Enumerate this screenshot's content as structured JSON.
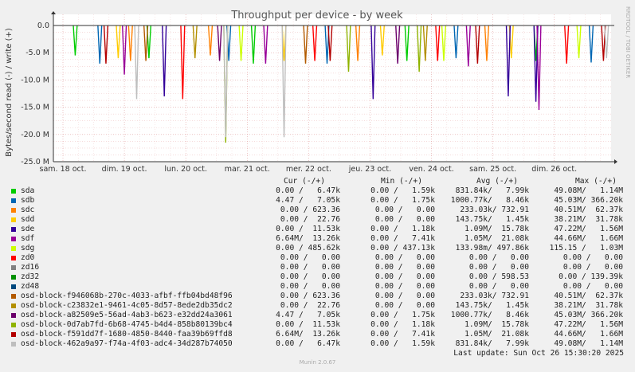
{
  "chart_data": {
    "type": "line",
    "title": "Throughput per device - by week",
    "ylabel": "Bytes/second read (-) / write (+)",
    "ylim": [
      -25.0,
      0.0
    ],
    "y_unit": "M",
    "y_ticks": [
      0.0,
      -5.0,
      -10.0,
      -15.0,
      -20.0,
      -25.0
    ],
    "y_tick_labels": [
      "0.0",
      "-5.0 M",
      "-10.0 M",
      "-15.0 M",
      "-20.0 M",
      "-25.0 M"
    ],
    "x_tick_labels": [
      "sam. 18 oct.",
      "dim. 19 oct.",
      "lun. 20 oct.",
      "mar. 21 oct.",
      "mer. 22 oct.",
      "jeu. 23 oct.",
      "ven. 24 oct.",
      "sam. 25 oct.",
      "dim. 26 oct."
    ],
    "grid": true,
    "series": [
      {
        "name": "sda",
        "color": "#00cc00",
        "spikes": [
          [
            0.2,
            -5.5
          ],
          [
            1.4,
            -6
          ],
          [
            3.1,
            -7
          ],
          [
            5.6,
            -6.5
          ],
          [
            7.7,
            -6.5
          ]
        ]
      },
      {
        "name": "sdb",
        "color": "#0066b3",
        "spikes": [
          [
            0.6,
            -7
          ],
          [
            2.7,
            -6.5
          ],
          [
            4.3,
            -7
          ],
          [
            6.4,
            -6
          ],
          [
            8.6,
            -6.8
          ]
        ]
      },
      {
        "name": "sdc",
        "color": "#ff8000",
        "spikes": [
          [
            1.1,
            -6.5
          ],
          [
            2.4,
            -5.5
          ],
          [
            4.8,
            -6.5
          ],
          [
            6.9,
            -6.5
          ]
        ]
      },
      {
        "name": "sdd",
        "color": "#ffcc00",
        "spikes": [
          [
            0.9,
            -6
          ],
          [
            3.6,
            -6.5
          ],
          [
            5.2,
            -5.5
          ],
          [
            7.3,
            -6
          ]
        ]
      },
      {
        "name": "sde",
        "color": "#330099",
        "spikes": [
          [
            1.65,
            -13
          ],
          [
            5.05,
            -13.5
          ],
          [
            7.25,
            -13
          ],
          [
            7.7,
            -14
          ]
        ]
      },
      {
        "name": "sdf",
        "color": "#990099",
        "spikes": [
          [
            1.0,
            -9
          ],
          [
            3.3,
            -7
          ],
          [
            6.6,
            -7.5
          ],
          [
            7.75,
            -15.5
          ]
        ]
      },
      {
        "name": "sdg",
        "color": "#ccff00",
        "spikes": [
          [
            2.9,
            -6.5
          ],
          [
            6.2,
            -6.5
          ],
          [
            8.4,
            -6
          ]
        ]
      },
      {
        "name": "zd0",
        "color": "#ff0000",
        "spikes": [
          [
            1.95,
            -13.5
          ],
          [
            4.1,
            -6.5
          ],
          [
            6.1,
            -6.5
          ],
          [
            8.2,
            -7
          ]
        ]
      },
      {
        "name": "zd16",
        "color": "#808080",
        "spikes": []
      },
      {
        "name": "zd32",
        "color": "#008f00",
        "spikes": []
      },
      {
        "name": "zd48",
        "color": "#00487d",
        "spikes": []
      },
      {
        "name": "osd-block-f946068b-270c-4033-afbf-ffb04bd48f96",
        "color": "#b35a00",
        "spikes": [
          [
            1.35,
            -6.5
          ],
          [
            3.95,
            -7
          ]
        ]
      },
      {
        "name": "osd-block-c23832e1-9461-4c05-8d57-8ede2db35dc2",
        "color": "#b38f00",
        "spikes": [
          [
            2.15,
            -6
          ],
          [
            5.9,
            -6.5
          ]
        ]
      },
      {
        "name": "osd-block-a82509e5-56ad-4ab3-b623-e32dd24a3061",
        "color": "#6b006b",
        "spikes": [
          [
            2.55,
            -6.5
          ],
          [
            5.45,
            -7
          ]
        ]
      },
      {
        "name": "osd-block-0d7ab7fd-6b68-4745-b4d4-858b80139bc4",
        "color": "#8fb300",
        "spikes": [
          [
            2.65,
            -21.5
          ],
          [
            4.65,
            -8.5
          ],
          [
            5.8,
            -8.5
          ]
        ]
      },
      {
        "name": "osd-block-f591dd7f-1680-4850-8440-faa39b69ffd8",
        "color": "#b30000",
        "spikes": [
          [
            0.7,
            -7
          ],
          [
            4.35,
            -6.5
          ],
          [
            6.75,
            -7
          ],
          [
            8.8,
            -6.5
          ]
        ]
      },
      {
        "name": "osd-block-462a9a97-f74a-4f03-adc4-34d287b74050",
        "color": "#bebebe",
        "spikes": [
          [
            1.2,
            -13.5
          ],
          [
            2.65,
            -20.5
          ],
          [
            3.6,
            -20.5
          ],
          [
            8.85,
            -6
          ]
        ]
      }
    ]
  },
  "legend": {
    "headers": {
      "cur": "Cur (-/+)",
      "min": "Min (-/+)",
      "avg": "Avg (-/+)",
      "max": "Max (-/+)"
    },
    "rows": [
      {
        "name": "sda",
        "color": "#00cc00",
        "cur": "0.00 /   6.47k",
        "min": "0.00 /   1.59k",
        "avg": "831.84k/   7.99k",
        "max": "49.08M/   1.14M"
      },
      {
        "name": "sdb",
        "color": "#0066b3",
        "cur": "4.47 /   7.05k",
        "min": "0.00 /   1.75k",
        "avg": "1000.77k/   8.46k",
        "max": "45.03M/ 366.20k"
      },
      {
        "name": "sdc",
        "color": "#ff8000",
        "cur": "0.00 / 623.36",
        "min": "0.00 /   0.00",
        "avg": "233.03k/ 732.91",
        "max": "40.51M/  62.37k"
      },
      {
        "name": "sdd",
        "color": "#ffcc00",
        "cur": "0.00 /  22.76",
        "min": "0.00 /   0.00",
        "avg": "143.75k/   1.45k",
        "max": "38.21M/  31.78k"
      },
      {
        "name": "sde",
        "color": "#330099",
        "cur": "0.00 /  11.53k",
        "min": "0.00 /   1.18k",
        "avg": "1.09M/  15.78k",
        "max": "47.22M/   1.56M"
      },
      {
        "name": "sdf",
        "color": "#990099",
        "cur": "6.64M/  13.26k",
        "min": "0.00 /   7.41k",
        "avg": "1.05M/  21.08k",
        "max": "44.66M/   1.66M"
      },
      {
        "name": "sdg",
        "color": "#ccff00",
        "cur": "0.00 / 485.62k",
        "min": "0.00 / 437.13k",
        "avg": "133.98m/ 497.86k",
        "max": "115.15 /   1.03M"
      },
      {
        "name": "zd0",
        "color": "#ff0000",
        "cur": "0.00 /   0.00",
        "min": "0.00 /   0.00",
        "avg": "0.00 /   0.00",
        "max": "0.00 /   0.00"
      },
      {
        "name": "zd16",
        "color": "#808080",
        "cur": "0.00 /   0.00",
        "min": "0.00 /   0.00",
        "avg": "0.00 /   0.00",
        "max": "0.00 /   0.00"
      },
      {
        "name": "zd32",
        "color": "#008f00",
        "cur": "0.00 /   0.00",
        "min": "0.00 /   0.00",
        "avg": "0.00 / 598.53",
        "max": "0.00 / 139.39k"
      },
      {
        "name": "zd48",
        "color": "#00487d",
        "cur": "0.00 /   0.00",
        "min": "0.00 /   0.00",
        "avg": "0.00 /   0.00",
        "max": "0.00 /   0.00"
      },
      {
        "name": "osd-block-f946068b-270c-4033-afbf-ffb04bd48f96",
        "color": "#b35a00",
        "cur": "0.00 / 623.36",
        "min": "0.00 /   0.00",
        "avg": "233.03k/ 732.91",
        "max": "40.51M/  62.37k"
      },
      {
        "name": "osd-block-c23832e1-9461-4c05-8d57-8ede2db35dc2",
        "color": "#b38f00",
        "cur": "0.00 /  22.76",
        "min": "0.00 /   0.00",
        "avg": "143.75k/   1.45k",
        "max": "38.21M/  31.78k"
      },
      {
        "name": "osd-block-a82509e5-56ad-4ab3-b623-e32dd24a3061",
        "color": "#6b006b",
        "cur": "4.47 /   7.05k",
        "min": "0.00 /   1.75k",
        "avg": "1000.77k/   8.46k",
        "max": "45.03M/ 366.20k"
      },
      {
        "name": "osd-block-0d7ab7fd-6b68-4745-b4d4-858b80139bc4",
        "color": "#8fb300",
        "cur": "0.00 /  11.53k",
        "min": "0.00 /   1.18k",
        "avg": "1.09M/  15.78k",
        "max": "47.22M/   1.56M"
      },
      {
        "name": "osd-block-f591dd7f-1680-4850-8440-faa39b69ffd8",
        "color": "#b30000",
        "cur": "6.64M/  13.26k",
        "min": "0.00 /   7.41k",
        "avg": "1.05M/  21.08k",
        "max": "44.66M/   1.66M"
      },
      {
        "name": "osd-block-462a9a97-f74a-4f03-adc4-34d287b74050",
        "color": "#bebebe",
        "cur": "0.00 /   6.47k",
        "min": "0.00 /   1.59k",
        "avg": "831.84k/   7.99k",
        "max": "49.08M/   1.14M"
      }
    ]
  },
  "last_update": "Last update: Sun Oct 26 15:30:20 2025",
  "watermark": "RRDTOOL / TOBI OETIKER",
  "footer": "Munin 2.0.67"
}
